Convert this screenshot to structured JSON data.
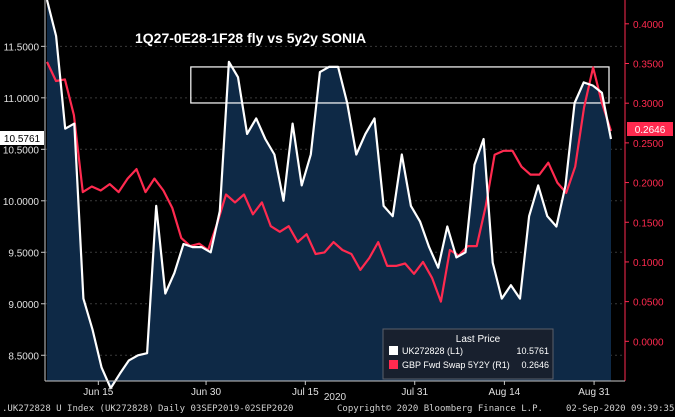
{
  "chart_data": {
    "type": "line",
    "title": "1Q27-0E28-1F28 fly vs 5y2y SONIA",
    "xlabel": "2020",
    "x_ticks": [
      "Jun 15",
      "Jun 30",
      "Jul 15",
      "Jul 31",
      "Aug 14",
      "Aug 31"
    ],
    "y_left": {
      "ticks": [
        "8.5000",
        "9.0000",
        "9.5000",
        "10.0000",
        "10.5000",
        "11.0000",
        "11.5000"
      ],
      "range": [
        8.25,
        11.95
      ]
    },
    "y_right": {
      "ticks": [
        "0.0000",
        "0.0500",
        "0.1000",
        "0.1500",
        "0.2000",
        "0.2500",
        "0.3000",
        "0.3500",
        "0.4000"
      ],
      "range": [
        -0.05,
        0.43
      ]
    },
    "last_labels": {
      "left": "10.5761",
      "right": "0.2646"
    },
    "legend": {
      "header": "Last Price",
      "position": "bottom-right",
      "items": [
        {
          "name": "UK272828 (L1)",
          "value": "10.5761",
          "color": "#ffffff"
        },
        {
          "name": "GBP Fwd Swap 5Y2Y (R1)",
          "value": "0.2646",
          "color": "#ff2a4f"
        }
      ]
    },
    "series": [
      {
        "name": "UK272828 (L1)",
        "axis": "left",
        "color": "#ffffff",
        "values": [
          11.95,
          11.6,
          10.7,
          10.75,
          9.05,
          8.75,
          8.38,
          8.18,
          8.32,
          8.45,
          8.5,
          8.52,
          9.95,
          9.1,
          9.3,
          9.58,
          9.55,
          9.55,
          9.5,
          9.9,
          11.35,
          11.2,
          10.65,
          10.8,
          10.6,
          10.45,
          10.0,
          10.75,
          10.15,
          10.45,
          11.25,
          11.3,
          11.3,
          10.95,
          10.45,
          10.65,
          10.8,
          9.95,
          9.85,
          10.45,
          9.95,
          9.8,
          9.55,
          9.35,
          9.75,
          9.45,
          9.5,
          10.35,
          10.6,
          9.4,
          9.05,
          9.18,
          9.05,
          9.85,
          10.15,
          9.85,
          9.75,
          10.15,
          10.95,
          11.15,
          11.12,
          11.05,
          10.6
        ]
      },
      {
        "name": "GBP Fwd Swap 5Y2Y (R1)",
        "axis": "right",
        "color": "#ff2a4f",
        "values": [
          0.352,
          0.328,
          0.33,
          0.285,
          0.188,
          0.195,
          0.19,
          0.198,
          0.188,
          0.205,
          0.217,
          0.188,
          0.205,
          0.19,
          0.168,
          0.13,
          0.12,
          0.123,
          0.115,
          0.148,
          0.185,
          0.175,
          0.185,
          0.16,
          0.175,
          0.145,
          0.138,
          0.145,
          0.125,
          0.135,
          0.11,
          0.112,
          0.125,
          0.115,
          0.11,
          0.09,
          0.105,
          0.125,
          0.095,
          0.095,
          0.098,
          0.085,
          0.1,
          0.08,
          0.05,
          0.115,
          0.108,
          0.12,
          0.12,
          0.17,
          0.235,
          0.24,
          0.24,
          0.22,
          0.21,
          0.21,
          0.225,
          0.2,
          0.187,
          0.22,
          0.295,
          0.345,
          0.3,
          0.265
        ]
      }
    ],
    "highlight_box": {
      "x_from": "Jun 29",
      "x_to": "Aug 31",
      "y_from": 10.95,
      "y_to": 11.3
    }
  }
}
